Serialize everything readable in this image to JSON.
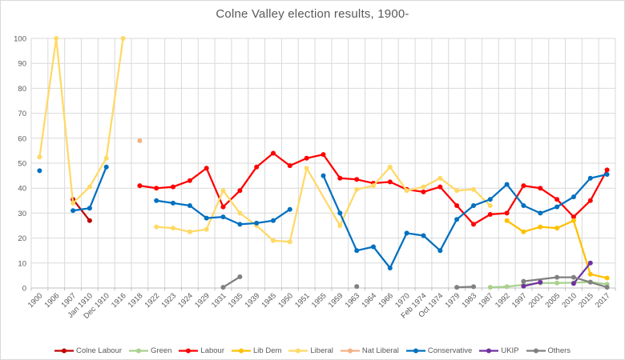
{
  "page": {
    "background": "#FFFFFF",
    "border_color": "#D9D9D9",
    "gridline_color": "#D9D9D9",
    "axis_line_color": "#BFBFBF",
    "title_color": "#595959",
    "axis_label_color": "#595959",
    "legend_text_color": "#595959"
  },
  "chart_data": {
    "type": "line",
    "title": "Colne Valley election results, 1900-",
    "grid": true,
    "legend_position": "bottom",
    "categories": [
      "1900",
      "1906",
      "1907",
      "Jan 1910",
      "Dec 1910",
      "1916",
      "1918",
      "1922",
      "1923",
      "1924",
      "1929",
      "1931",
      "1935",
      "1939",
      "1945",
      "1950",
      "1951",
      "1955",
      "1959",
      "1963",
      "1964",
      "1966",
      "1970",
      "Feb 1974",
      "Oct 1974",
      "1979",
      "1983",
      "1987",
      "1992",
      "1997",
      "2001",
      "2005",
      "2010",
      "2015",
      "2017"
    ],
    "y_axis": {
      "min": 0,
      "max": 100,
      "step": 10,
      "tick_labels": [
        "0",
        "10",
        "20",
        "30",
        "40",
        "50",
        "60",
        "70",
        "80",
        "90",
        "100"
      ]
    },
    "series": [
      {
        "name": "Colne Labour",
        "color": "#C00000",
        "segments": [
          [
            [
              "1907",
              35.5
            ],
            [
              "Jan 1910",
              27
            ]
          ]
        ]
      },
      {
        "name": "Green",
        "color": "#A9D18E",
        "segments": [
          [
            [
              "1987",
              0.3
            ],
            [
              "1992",
              0.5
            ],
            [
              "1997",
              1.3
            ],
            [
              "2001",
              2
            ],
            [
              "2005",
              2
            ],
            [
              "2010",
              2.1
            ],
            [
              "2015",
              2.4
            ],
            [
              "2017",
              1.5
            ]
          ]
        ]
      },
      {
        "name": "Labour",
        "color": "#FF0000",
        "segments": [
          [
            [
              "1918",
              41
            ],
            [
              "1922",
              40
            ],
            [
              "1923",
              40.5
            ],
            [
              "1924",
              43
            ],
            [
              "1929",
              48
            ],
            [
              "1931",
              32.5
            ],
            [
              "1935",
              39
            ],
            [
              "1939",
              48.5
            ],
            [
              "1945",
              54
            ],
            [
              "1950",
              49
            ],
            [
              "1951",
              52
            ],
            [
              "1955",
              53.5
            ],
            [
              "1959",
              44
            ],
            [
              "1963",
              43.5
            ],
            [
              "1964",
              42
            ],
            [
              "1966",
              42.5
            ],
            [
              "1970",
              39.5
            ],
            [
              "Feb 1974",
              38.5
            ],
            [
              "Oct 1974",
              40.5
            ],
            [
              "1979",
              33
            ],
            [
              "1983",
              25.5
            ],
            [
              "1987",
              29.5
            ],
            [
              "1992",
              30
            ],
            [
              "1997",
              41
            ],
            [
              "2001",
              40
            ],
            [
              "2005",
              35.5
            ],
            [
              "2010",
              28.5
            ],
            [
              "2015",
              35
            ],
            [
              "2017",
              47.3
            ]
          ]
        ]
      },
      {
        "name": "Lib Dem",
        "color": "#FFC000",
        "segments": [
          [
            [
              "1992",
              27
            ],
            [
              "1997",
              22.5
            ],
            [
              "2001",
              24.5
            ],
            [
              "2005",
              24
            ],
            [
              "2010",
              27
            ],
            [
              "2015",
              5.5
            ],
            [
              "2017",
              4
            ]
          ]
        ]
      },
      {
        "name": "Liberal",
        "color": "#FFD966",
        "segments": [
          [
            [
              "1900",
              52.5
            ],
            [
              "1906",
              100
            ],
            [
              "1907",
              34
            ],
            [
              "Jan 1910",
              40.5
            ],
            [
              "Dec 1910",
              52
            ],
            [
              "1916",
              100
            ]
          ],
          [
            [
              "1922",
              24.5
            ],
            [
              "1923",
              24
            ],
            [
              "1924",
              22.5
            ],
            [
              "1929",
              23.5
            ],
            [
              "1931",
              39
            ],
            [
              "1935",
              30
            ],
            [
              "1939",
              25
            ],
            [
              "1945",
              19
            ],
            [
              "1950",
              18.5
            ],
            [
              "1951",
              48
            ],
            [
              "1959",
              25
            ],
            [
              "1963",
              39.5
            ],
            [
              "1964",
              41
            ],
            [
              "1966",
              48.5
            ],
            [
              "1970",
              39
            ],
            [
              "Feb 1974",
              40.5
            ],
            [
              "Oct 1974",
              44
            ],
            [
              "1979",
              39
            ],
            [
              "1983",
              39.5
            ],
            [
              "1987",
              33
            ]
          ]
        ]
      },
      {
        "name": "Nat Liberal",
        "color": "#F4B183",
        "segments": [
          [
            [
              "1918",
              59
            ]
          ]
        ]
      },
      {
        "name": "Conservative",
        "color": "#0070C0",
        "segments": [
          [
            [
              "1900",
              47
            ]
          ],
          [
            [
              "1907",
              31
            ],
            [
              "Jan 1910",
              32
            ],
            [
              "Dec 1910",
              48.5
            ]
          ],
          [
            [
              "1922",
              35
            ],
            [
              "1923",
              34
            ],
            [
              "1924",
              33
            ],
            [
              "1929",
              28
            ],
            [
              "1931",
              28.5
            ],
            [
              "1935",
              25.5
            ],
            [
              "1939",
              26
            ],
            [
              "1945",
              27
            ],
            [
              "1950",
              31.5
            ]
          ],
          [
            [
              "1955",
              45
            ],
            [
              "1959",
              30
            ],
            [
              "1963",
              15
            ],
            [
              "1964",
              16.5
            ],
            [
              "1966",
              8
            ],
            [
              "1970",
              22
            ],
            [
              "Feb 1974",
              21
            ],
            [
              "Oct 1974",
              15
            ],
            [
              "1979",
              27.5
            ],
            [
              "1983",
              33
            ],
            [
              "1987",
              35.5
            ],
            [
              "1992",
              41.5
            ],
            [
              "1997",
              33
            ],
            [
              "2001",
              30
            ],
            [
              "2005",
              32.5
            ],
            [
              "2010",
              36.5
            ],
            [
              "2015",
              44
            ],
            [
              "2017",
              45.5
            ]
          ]
        ]
      },
      {
        "name": "UKIP",
        "color": "#7030A0",
        "segments": [
          [
            [
              "1997",
              0.7
            ],
            [
              "2001",
              2.3
            ]
          ],
          [
            [
              "2010",
              1.8
            ],
            [
              "2015",
              10
            ]
          ]
        ]
      },
      {
        "name": "Others",
        "color": "#808080",
        "segments": [
          [
            [
              "1931",
              0.3
            ],
            [
              "1935",
              4.5
            ]
          ],
          [
            [
              "1963",
              0.6
            ]
          ],
          [
            [
              "1979",
              0.3
            ],
            [
              "1983",
              0.5
            ]
          ],
          [
            [
              "1997",
              2.7
            ],
            [
              "2005",
              4.3
            ],
            [
              "2010",
              4.3
            ],
            [
              "2015",
              2.3
            ],
            [
              "2017",
              0.3
            ]
          ]
        ]
      }
    ]
  }
}
